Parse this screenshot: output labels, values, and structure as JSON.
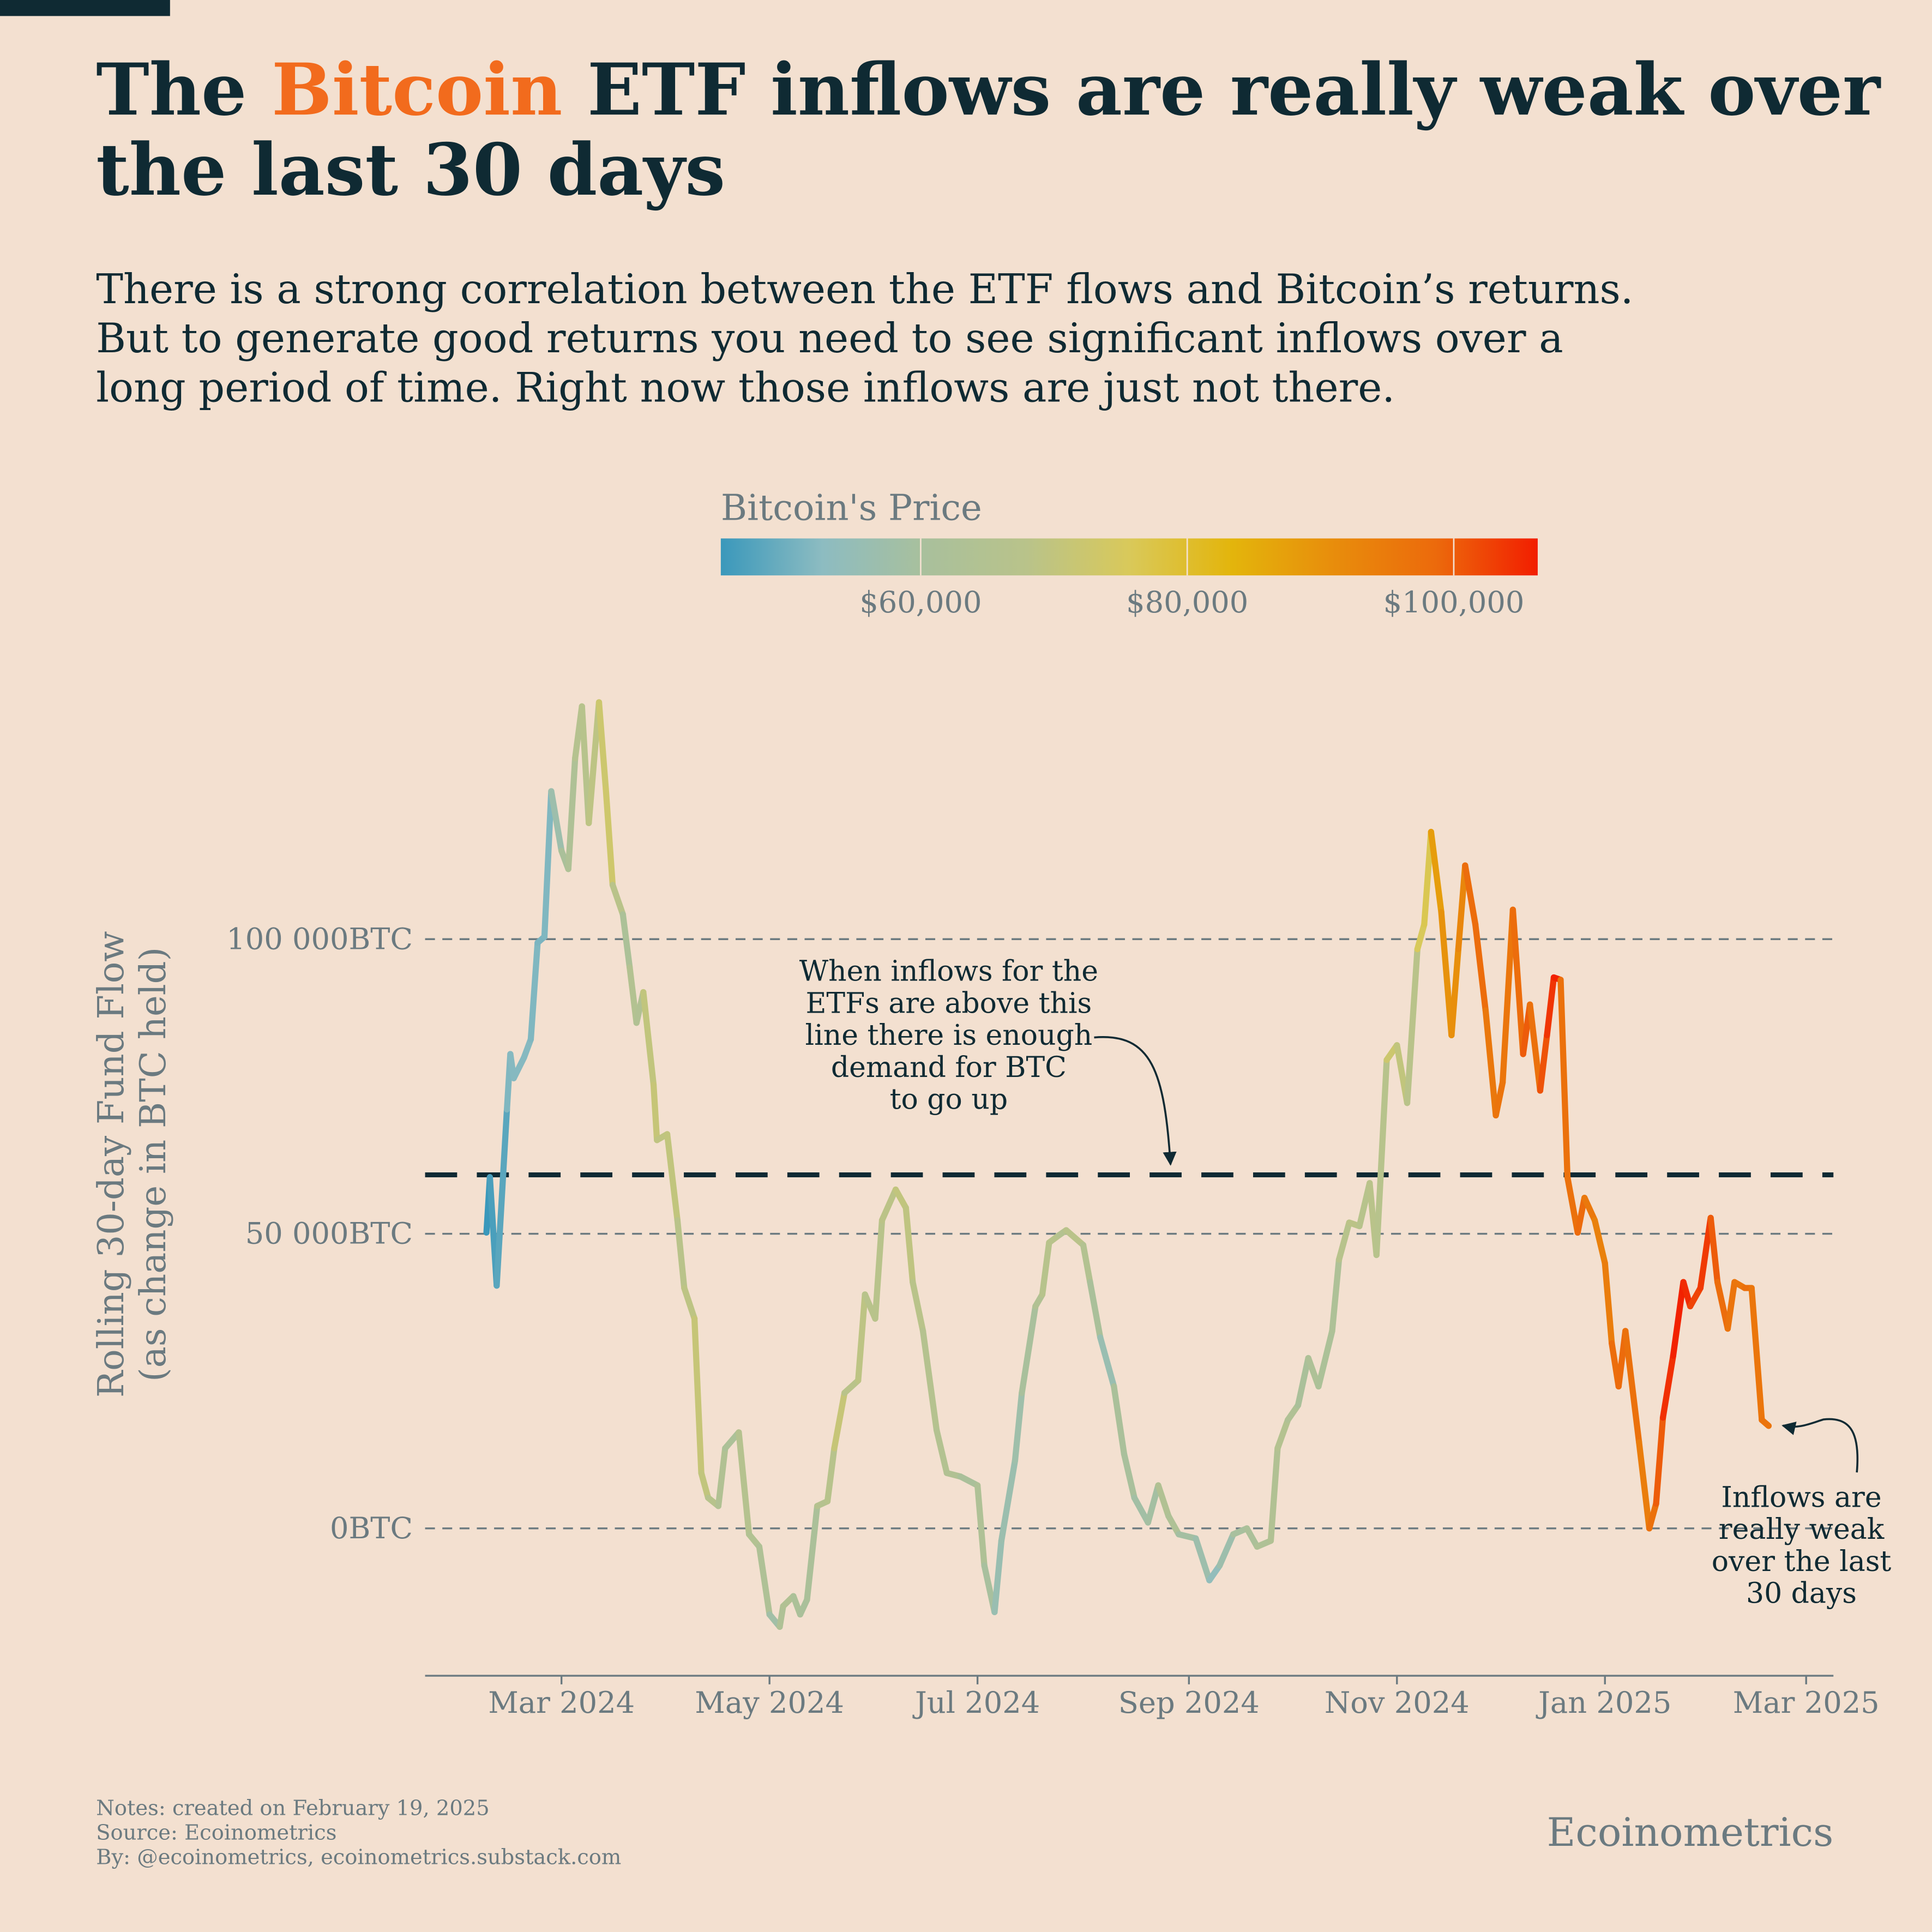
{
  "chart_data": {
    "type": "line",
    "title": {
      "line1_start": "The ",
      "highlight": "Bitcoin",
      "line1_end": " ETF inflows are really weak over",
      "line2": "the last 30 days",
      "highlight_color": "#f26b1d"
    },
    "subtitle": [
      "There is a strong correlation between the ETF flows and Bitcoin’s returns.",
      "But to generate good returns you need to see significant inflows over a",
      "long period of time. Right now those inflows are just not there."
    ],
    "y_label": [
      "Rolling 30-day Fund Flow",
      "(as change in BTC held)"
    ],
    "colorbar": {
      "title": "Bitcoin's Price",
      "clim": [
        45000,
        106300
      ],
      "colormap": [
        "#3a98bb",
        "#8dbcc1",
        "#a9c09c",
        "#b9c38a",
        "#d9c95a",
        "#e3b50c",
        "#e88d0c",
        "#ec6a0c",
        "#f21e00"
      ],
      "ticks": [
        {
          "value": 60000,
          "label": "$60,000"
        },
        {
          "value": 80000,
          "label": "$80,000"
        },
        {
          "value": 100000,
          "label": "$100,000"
        }
      ]
    },
    "xlim": [
      "2024-01-21",
      "2025-03-09"
    ],
    "xticks": [
      {
        "value": "2024-03-01",
        "label": "Mar 2024"
      },
      {
        "value": "2024-05-01",
        "label": "May 2024"
      },
      {
        "value": "2024-07-01",
        "label": "Jul 2024"
      },
      {
        "value": "2024-09-01",
        "label": "Sep 2024"
      },
      {
        "value": "2024-11-01",
        "label": "Nov 2024"
      },
      {
        "value": "2025-01-01",
        "label": "Jan 2025"
      },
      {
        "value": "2025-03-01",
        "label": "Mar 2025"
      }
    ],
    "ylim": [
      -25000,
      145000
    ],
    "yticks": [
      {
        "value": 0,
        "label": "0BTC"
      },
      {
        "value": 50000,
        "label": "50 000BTC"
      },
      {
        "value": 100000,
        "label": "100 000BTC"
      }
    ],
    "grid": true,
    "threshold": 60000,
    "x": [
      "2024-02-08",
      "2024-02-09",
      "2024-02-11",
      "2024-02-14",
      "2024-02-15",
      "2024-02-16",
      "2024-02-19",
      "2024-02-21",
      "2024-02-23",
      "2024-02-25",
      "2024-02-27",
      "2024-03-01",
      "2024-03-03",
      "2024-03-05",
      "2024-03-07",
      "2024-03-09",
      "2024-03-12",
      "2024-03-14",
      "2024-03-16",
      "2024-03-19",
      "2024-03-21",
      "2024-03-23",
      "2024-03-25",
      "2024-03-28",
      "2024-03-29",
      "2024-04-01",
      "2024-04-04",
      "2024-04-06",
      "2024-04-09",
      "2024-04-11",
      "2024-04-13",
      "2024-04-16",
      "2024-04-18",
      "2024-04-22",
      "2024-04-25",
      "2024-04-28",
      "2024-05-01",
      "2024-05-04",
      "2024-05-05",
      "2024-05-08",
      "2024-05-10",
      "2024-05-12",
      "2024-05-15",
      "2024-05-18",
      "2024-05-20",
      "2024-05-23",
      "2024-05-27",
      "2024-05-29",
      "2024-06-01",
      "2024-06-03",
      "2024-06-07",
      "2024-06-10",
      "2024-06-12",
      "2024-06-15",
      "2024-06-19",
      "2024-06-22",
      "2024-06-26",
      "2024-07-01",
      "2024-07-03",
      "2024-07-06",
      "2024-07-08",
      "2024-07-12",
      "2024-07-14",
      "2024-07-18",
      "2024-07-20",
      "2024-07-22",
      "2024-07-25",
      "2024-07-27",
      "2024-08-01",
      "2024-08-03",
      "2024-08-06",
      "2024-08-10",
      "2024-08-13",
      "2024-08-16",
      "2024-08-20",
      "2024-08-23",
      "2024-08-26",
      "2024-08-29",
      "2024-09-03",
      "2024-09-07",
      "2024-09-10",
      "2024-09-14",
      "2024-09-18",
      "2024-09-21",
      "2024-09-25",
      "2024-09-27",
      "2024-09-30",
      "2024-10-03",
      "2024-10-06",
      "2024-10-09",
      "2024-10-13",
      "2024-10-15",
      "2024-10-18",
      "2024-10-21",
      "2024-10-24",
      "2024-10-26",
      "2024-10-29",
      "2024-11-01",
      "2024-11-04",
      "2024-11-07",
      "2024-11-09",
      "2024-11-11",
      "2024-11-14",
      "2024-11-17",
      "2024-11-19",
      "2024-11-21",
      "2024-11-24",
      "2024-11-27",
      "2024-11-30",
      "2024-12-02",
      "2024-12-05",
      "2024-12-08",
      "2024-12-10",
      "2024-12-13",
      "2024-12-15",
      "2024-12-17",
      "2024-12-19",
      "2024-12-21",
      "2024-12-24",
      "2024-12-26",
      "2024-12-29",
      "2025-01-01",
      "2025-01-03",
      "2025-01-05",
      "2025-01-07",
      "2025-01-11",
      "2025-01-14",
      "2025-01-16",
      "2025-01-18",
      "2025-01-21",
      "2025-01-24",
      "2025-01-26",
      "2025-01-29",
      "2025-02-01",
      "2025-02-03",
      "2025-02-06",
      "2025-02-08",
      "2025-02-11",
      "2025-02-13",
      "2025-02-16",
      "2025-02-18"
    ],
    "series": [
      {
        "values": [
          50200,
          59600,
          41200,
          71100,
          80500,
          76400,
          79900,
          83000,
          99400,
          100400,
          125100,
          115000,
          111900,
          130700,
          139500,
          119700,
          140200,
          125500,
          109200,
          104200,
          95200,
          85800,
          91000,
          75300,
          65900,
          66900,
          52300,
          40800,
          35600,
          9400,
          5200,
          3800,
          13600,
          16300,
          -1000,
          -3100,
          -14600,
          -16700,
          -13200,
          -11500,
          -14600,
          -12100,
          3800,
          4600,
          13600,
          23000,
          25100,
          39700,
          35600,
          52300,
          57500,
          54400,
          41800,
          33500,
          16700,
          9400,
          8800,
          7300,
          -6300,
          -14200,
          -2100,
          11500,
          23000,
          37700,
          39700,
          48500,
          49800,
          50600,
          48100,
          41800,
          32400,
          24100,
          12600,
          5200,
          1000,
          7300,
          2100,
          -1000,
          -1700,
          -8800,
          -6300,
          -1000,
          0,
          -3100,
          -2100,
          13600,
          18400,
          20900,
          28900,
          24100,
          33500,
          45600,
          51900,
          51300,
          58600,
          46400,
          79500,
          82000,
          72200,
          98300,
          102500,
          118200,
          104600,
          83700,
          98300,
          112500,
          102500,
          87900,
          70100,
          75700,
          105000,
          80500,
          88900,
          74300,
          83700,
          93500,
          93100,
          59600,
          50200,
          56100,
          52300,
          45000,
          31400,
          24100,
          33500,
          14600,
          0,
          4200,
          18800,
          29300,
          41800,
          37700,
          40800,
          52700,
          41800,
          33900,
          41800,
          40800,
          40800,
          18400,
          17400
        ],
        "price": [
          45000,
          46500,
          48000,
          51500,
          52000,
          52000,
          52000,
          51500,
          51000,
          51500,
          57000,
          61000,
          63000,
          66000,
          67000,
          69000,
          72500,
          73000,
          68000,
          62000,
          65000,
          64000,
          70000,
          71000,
          69500,
          70000,
          68000,
          69000,
          71000,
          70000,
          67000,
          64000,
          62000,
          66000,
          64500,
          63000,
          58000,
          63000,
          64000,
          62000,
          61000,
          61500,
          66000,
          67000,
          71000,
          68000,
          69000,
          67500,
          67500,
          68500,
          70000,
          69500,
          68000,
          66000,
          65000,
          64000,
          61000,
          63000,
          60000,
          56000,
          56500,
          57500,
          60500,
          64000,
          67000,
          67500,
          65500,
          68000,
          65000,
          61000,
          56000,
          61000,
          60500,
          58500,
          59000,
          64000,
          63000,
          59000,
          57000,
          54000,
          57000,
          60000,
          61500,
          63000,
          64000,
          65500,
          63500,
          61000,
          62500,
          62000,
          62500,
          67000,
          68500,
          67000,
          68000,
          67000,
          72500,
          70000,
          68000,
          75500,
          76500,
          88000,
          90000,
          90500,
          92500,
          98000,
          98000,
          95500,
          96500,
          96000,
          98000,
          100000,
          97000,
          101000,
          104000,
          106000,
          97000,
          97000,
          98500,
          95500,
          93500,
          94500,
          98000,
          98500,
          97000,
          94500,
          97000,
          100000,
          104500,
          106000,
          105000,
          102500,
          103500,
          100000,
          98000,
          96500,
          96000,
          97500,
          96000,
          96500,
          96000
        ]
      }
    ],
    "annotations": [
      {
        "lines": [
          "When inflows for the",
          "ETFs are above this",
          "line there is enough",
          "demand for BTC",
          "to go up"
        ]
      },
      {
        "lines": [
          "Inflows are",
          "really weak",
          "over the last",
          "30 days"
        ]
      }
    ],
    "notes": [
      "Notes: created on February 19, 2025",
      "Source: Ecoinometrics",
      "By: @ecoinometrics, ecoinometrics.substack.com"
    ],
    "brand": "Ecoinometrics"
  }
}
